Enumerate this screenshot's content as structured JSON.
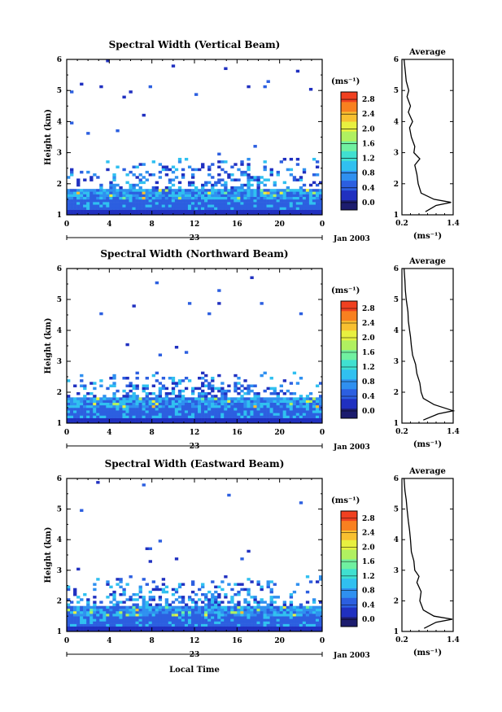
{
  "chart_data": [
    {
      "type": "heatmap",
      "title": "Spectral Width (Vertical Beam)",
      "ylabel": "Height (km)",
      "xlabel": "",
      "x_ticks": [
        "0",
        "4",
        "8",
        "12",
        "16",
        "20",
        "0"
      ],
      "y_ticks": [
        "1",
        "2",
        "3",
        "4",
        "5",
        "6"
      ],
      "xlim": [
        0,
        24
      ],
      "ylim": [
        1,
        6
      ],
      "date_day": "23",
      "date_label": "Jan 2003",
      "colorbar": {
        "unit": "(ms⁻¹)",
        "ticks": [
          "0.0",
          "0.4",
          "0.8",
          "1.2",
          "1.6",
          "2.0",
          "2.4",
          "2.8"
        ]
      },
      "dense_layer_top_km": 1.8,
      "scatter_top_km": 2.8,
      "average_profile": {
        "title": "Average",
        "xlabel": "(ms⁻¹)",
        "x_ticks": [
          "0.2",
          "1.4"
        ],
        "xlim": [
          0.2,
          1.4
        ],
        "height_km": [
          1.1,
          1.3,
          1.4,
          1.5,
          1.7,
          2.0,
          2.3,
          2.6,
          2.8,
          3.0,
          3.2,
          3.5,
          3.8,
          4.0,
          4.3,
          4.5,
          4.8,
          5.0,
          5.3,
          5.6,
          6.0
        ],
        "width": [
          0.75,
          1.0,
          1.35,
          0.95,
          0.65,
          0.58,
          0.55,
          0.5,
          0.62,
          0.48,
          0.5,
          0.42,
          0.38,
          0.45,
          0.35,
          0.4,
          0.32,
          0.36,
          0.3,
          0.28,
          0.25
        ]
      }
    },
    {
      "type": "heatmap",
      "title": "Spectral Width (Northward Beam)",
      "ylabel": "Height (km)",
      "xlabel": "",
      "x_ticks": [
        "0",
        "4",
        "8",
        "12",
        "16",
        "20",
        "0"
      ],
      "y_ticks": [
        "1",
        "2",
        "3",
        "4",
        "5",
        "6"
      ],
      "xlim": [
        0,
        24
      ],
      "ylim": [
        1,
        6
      ],
      "date_day": "23",
      "date_label": "Jan 2003",
      "colorbar": {
        "unit": "(ms⁻¹)",
        "ticks": [
          "0.0",
          "0.4",
          "0.8",
          "1.2",
          "1.6",
          "2.0",
          "2.4",
          "2.8"
        ]
      },
      "dense_layer_top_km": 1.8,
      "scatter_top_km": 2.6,
      "average_profile": {
        "title": "Average",
        "xlabel": "(ms⁻¹)",
        "x_ticks": [
          "0.2",
          "1.4"
        ],
        "xlim": [
          0.2,
          1.4
        ],
        "height_km": [
          1.1,
          1.3,
          1.4,
          1.6,
          1.8,
          2.0,
          2.3,
          2.6,
          2.9,
          3.2,
          3.5,
          3.8,
          4.0,
          4.3,
          4.6,
          5.0,
          5.3,
          5.6,
          6.0
        ],
        "width": [
          0.7,
          1.05,
          1.4,
          0.95,
          0.7,
          0.65,
          0.62,
          0.55,
          0.52,
          0.45,
          0.42,
          0.4,
          0.38,
          0.35,
          0.34,
          0.3,
          0.28,
          0.27,
          0.25
        ]
      }
    },
    {
      "type": "heatmap",
      "title": "Spectral Width (Eastward Beam)",
      "ylabel": "Height (km)",
      "xlabel": "Local Time",
      "x_ticks": [
        "0",
        "4",
        "8",
        "12",
        "16",
        "20",
        "0"
      ],
      "y_ticks": [
        "1",
        "2",
        "3",
        "4",
        "5",
        "6"
      ],
      "xlim": [
        0,
        24
      ],
      "ylim": [
        1,
        6
      ],
      "date_day": "23",
      "date_label": "Jan 2003",
      "colorbar": {
        "unit": "(ms⁻¹)",
        "ticks": [
          "0.0",
          "0.4",
          "0.8",
          "1.2",
          "1.6",
          "2.0",
          "2.4",
          "2.8"
        ]
      },
      "dense_layer_top_km": 1.8,
      "scatter_top_km": 2.8,
      "average_profile": {
        "title": "Average",
        "xlabel": "(ms⁻¹)",
        "x_ticks": [
          "0.2",
          "1.4"
        ],
        "xlim": [
          0.2,
          1.4
        ],
        "height_km": [
          1.1,
          1.3,
          1.4,
          1.5,
          1.7,
          2.0,
          2.3,
          2.6,
          2.8,
          3.0,
          3.3,
          3.6,
          4.0,
          4.3,
          4.6,
          5.0,
          5.3,
          5.6,
          6.0
        ],
        "width": [
          0.72,
          1.0,
          1.38,
          0.95,
          0.7,
          0.62,
          0.65,
          0.55,
          0.6,
          0.5,
          0.48,
          0.42,
          0.4,
          0.38,
          0.35,
          0.32,
          0.3,
          0.27,
          0.25
        ]
      }
    }
  ],
  "colors": {
    "scale": [
      "#1c1c6e",
      "#2030c0",
      "#2c5fe0",
      "#2f90f0",
      "#30c0f0",
      "#40e0d0",
      "#70f0a0",
      "#b0f060",
      "#e8f040",
      "#f8c030",
      "#f88020",
      "#f04020"
    ]
  }
}
